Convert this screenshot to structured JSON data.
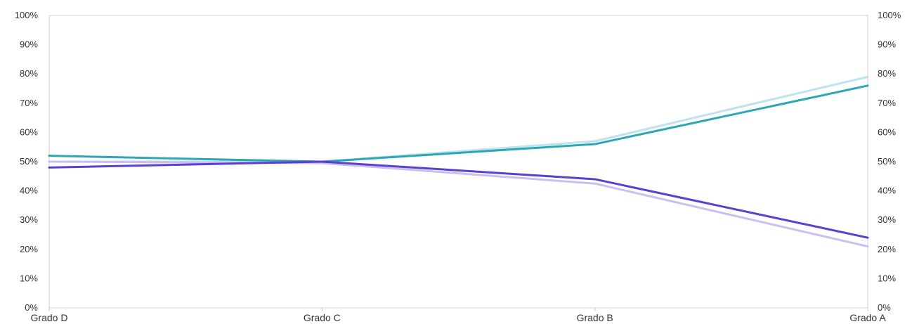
{
  "chart_data": {
    "type": "line",
    "title": "",
    "xlabel": "",
    "ylabel": "",
    "categories": [
      "Grado D",
      "Grado C",
      "Grado B",
      "Grado A"
    ],
    "ylim": [
      0,
      100
    ],
    "y_ticks": [
      "0%",
      "10%",
      "20%",
      "30%",
      "40%",
      "50%",
      "60%",
      "70%",
      "80%",
      "90%",
      "100%"
    ],
    "secondary_y_ticks": [
      "0%",
      "10%",
      "20%",
      "30%",
      "40%",
      "50%",
      "60%",
      "70%",
      "80%",
      "90%",
      "100%"
    ],
    "grid": false,
    "legend": "none",
    "series": [
      {
        "values": [
          50,
          50,
          57,
          79
        ],
        "color": "#bde3ec",
        "width": 3
      },
      {
        "values": [
          50,
          49.5,
          42.5,
          21
        ],
        "color": "#cbbff0",
        "width": 3
      },
      {
        "values": [
          52,
          50,
          56,
          76
        ],
        "color": "#2ea7b5",
        "width": 3
      },
      {
        "values": [
          48,
          50,
          44,
          24
        ],
        "color": "#5b3fd0",
        "width": 3
      }
    ]
  }
}
